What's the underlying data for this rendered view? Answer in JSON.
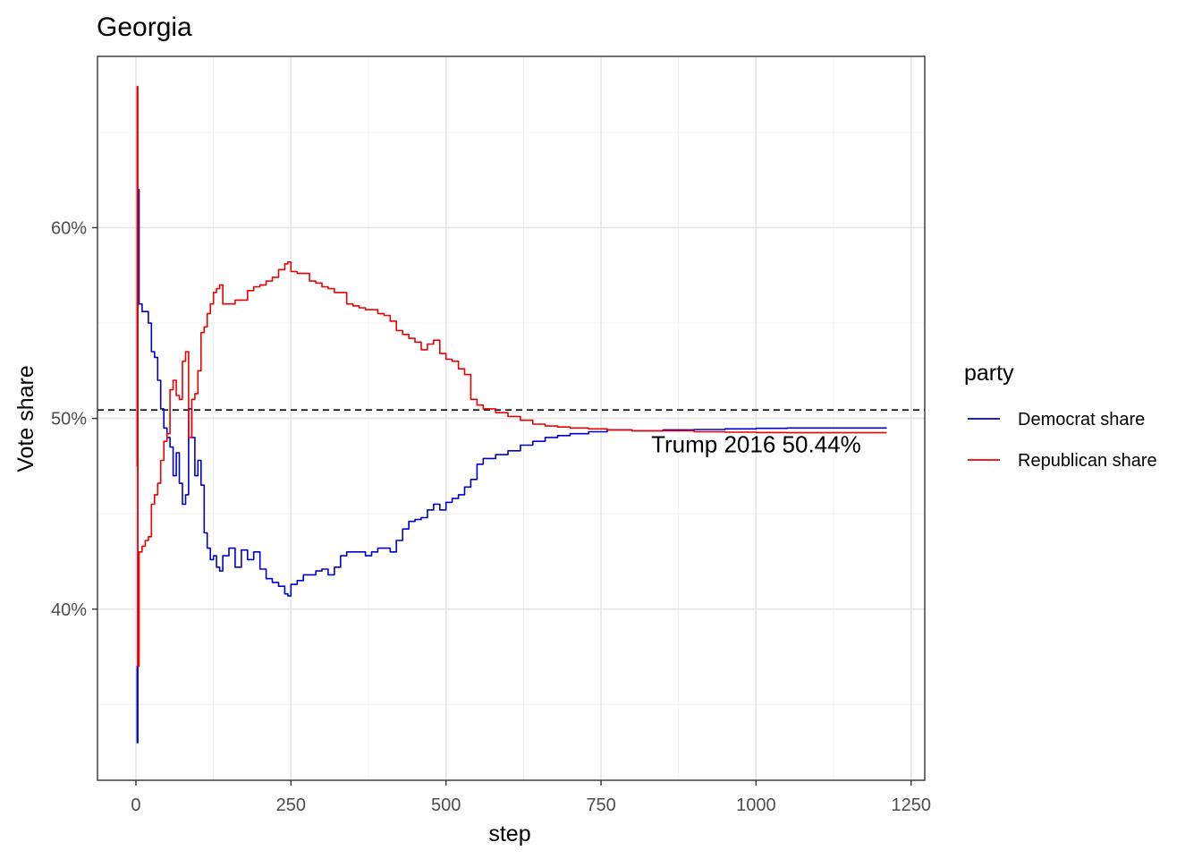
{
  "chart_data": {
    "type": "line",
    "title": "Georgia",
    "xlabel": "step",
    "ylabel": "Vote share",
    "xlim": [
      -62,
      1272
    ],
    "ylim": [
      0.3103,
      0.6898
    ],
    "x_ticks": [
      0,
      250,
      500,
      750,
      1000,
      1250
    ],
    "x_tick_labels": [
      "0",
      "250",
      "500",
      "750",
      "1000",
      "1250"
    ],
    "y_ticks": [
      0.4,
      0.5,
      0.6
    ],
    "y_tick_labels": [
      "40%",
      "50%",
      "60%"
    ],
    "grid": true,
    "legend": {
      "title": "party",
      "position": "right",
      "entries": [
        {
          "label": "Democrat share",
          "color": "#0000cd"
        },
        {
          "label": "Republican share",
          "color": "#ee0000"
        }
      ]
    },
    "reference_line": {
      "y": 0.5044,
      "style": "dashed",
      "color": "#000000"
    },
    "annotation": {
      "text": "Trump 2016 50.44%",
      "x": 1000,
      "y": 0.4865
    },
    "series": [
      {
        "name": "Democrat share",
        "color": "#0000cd",
        "points": [
          [
            1,
            0.37
          ],
          [
            2,
            0.33
          ],
          [
            3,
            0.62
          ],
          [
            5,
            0.56
          ],
          [
            10,
            0.556
          ],
          [
            20,
            0.55
          ],
          [
            25,
            0.535
          ],
          [
            30,
            0.532
          ],
          [
            35,
            0.52
          ],
          [
            40,
            0.505
          ],
          [
            45,
            0.495
          ],
          [
            50,
            0.49
          ],
          [
            55,
            0.485
          ],
          [
            60,
            0.47
          ],
          [
            65,
            0.482
          ],
          [
            70,
            0.466
          ],
          [
            75,
            0.455
          ],
          [
            80,
            0.46
          ],
          [
            85,
            0.505
          ],
          [
            90,
            0.49
          ],
          [
            95,
            0.47
          ],
          [
            100,
            0.478
          ],
          [
            105,
            0.465
          ],
          [
            110,
            0.44
          ],
          [
            115,
            0.432
          ],
          [
            120,
            0.426
          ],
          [
            125,
            0.428
          ],
          [
            130,
            0.422
          ],
          [
            135,
            0.42
          ],
          [
            140,
            0.428
          ],
          [
            150,
            0.432
          ],
          [
            160,
            0.422
          ],
          [
            170,
            0.431
          ],
          [
            180,
            0.426
          ],
          [
            190,
            0.43
          ],
          [
            200,
            0.421
          ],
          [
            210,
            0.416
          ],
          [
            220,
            0.414
          ],
          [
            230,
            0.412
          ],
          [
            240,
            0.408
          ],
          [
            245,
            0.407
          ],
          [
            250,
            0.413
          ],
          [
            260,
            0.415
          ],
          [
            270,
            0.418
          ],
          [
            280,
            0.418
          ],
          [
            290,
            0.42
          ],
          [
            300,
            0.421
          ],
          [
            310,
            0.418
          ],
          [
            320,
            0.422
          ],
          [
            330,
            0.428
          ],
          [
            340,
            0.43
          ],
          [
            350,
            0.43
          ],
          [
            360,
            0.43
          ],
          [
            370,
            0.428
          ],
          [
            380,
            0.43
          ],
          [
            390,
            0.432
          ],
          [
            400,
            0.432
          ],
          [
            410,
            0.43
          ],
          [
            420,
            0.436
          ],
          [
            430,
            0.442
          ],
          [
            440,
            0.446
          ],
          [
            450,
            0.447
          ],
          [
            460,
            0.448
          ],
          [
            470,
            0.452
          ],
          [
            480,
            0.455
          ],
          [
            490,
            0.452
          ],
          [
            500,
            0.456
          ],
          [
            510,
            0.458
          ],
          [
            520,
            0.46
          ],
          [
            530,
            0.464
          ],
          [
            540,
            0.468
          ],
          [
            550,
            0.476
          ],
          [
            560,
            0.479
          ],
          [
            580,
            0.481
          ],
          [
            600,
            0.483
          ],
          [
            620,
            0.486
          ],
          [
            640,
            0.488
          ],
          [
            660,
            0.49
          ],
          [
            680,
            0.491
          ],
          [
            700,
            0.492
          ],
          [
            730,
            0.493
          ],
          [
            760,
            0.494
          ],
          [
            800,
            0.4935
          ],
          [
            850,
            0.494
          ],
          [
            900,
            0.4942
          ],
          [
            950,
            0.4945
          ],
          [
            1000,
            0.4948
          ],
          [
            1050,
            0.495
          ],
          [
            1100,
            0.495
          ],
          [
            1150,
            0.495
          ],
          [
            1210,
            0.4952
          ]
        ]
      },
      {
        "name": "Republican share",
        "color": "#ee0000",
        "points": [
          [
            1,
            0.475
          ],
          [
            2,
            0.674
          ],
          [
            3,
            0.37
          ],
          [
            5,
            0.43
          ],
          [
            10,
            0.433
          ],
          [
            15,
            0.436
          ],
          [
            20,
            0.438
          ],
          [
            25,
            0.455
          ],
          [
            30,
            0.46
          ],
          [
            35,
            0.466
          ],
          [
            40,
            0.478
          ],
          [
            45,
            0.488
          ],
          [
            50,
            0.492
          ],
          [
            55,
            0.515
          ],
          [
            60,
            0.52
          ],
          [
            65,
            0.512
          ],
          [
            70,
            0.51
          ],
          [
            75,
            0.53
          ],
          [
            80,
            0.535
          ],
          [
            85,
            0.49
          ],
          [
            90,
            0.51
          ],
          [
            95,
            0.513
          ],
          [
            100,
            0.525
          ],
          [
            105,
            0.545
          ],
          [
            110,
            0.548
          ],
          [
            115,
            0.555
          ],
          [
            120,
            0.56
          ],
          [
            125,
            0.566
          ],
          [
            130,
            0.568
          ],
          [
            135,
            0.57
          ],
          [
            140,
            0.56
          ],
          [
            150,
            0.56
          ],
          [
            160,
            0.562
          ],
          [
            170,
            0.562
          ],
          [
            180,
            0.567
          ],
          [
            190,
            0.569
          ],
          [
            200,
            0.57
          ],
          [
            210,
            0.572
          ],
          [
            220,
            0.574
          ],
          [
            230,
            0.578
          ],
          [
            240,
            0.581
          ],
          [
            245,
            0.582
          ],
          [
            250,
            0.577
          ],
          [
            260,
            0.576
          ],
          [
            270,
            0.576
          ],
          [
            280,
            0.572
          ],
          [
            290,
            0.571
          ],
          [
            300,
            0.569
          ],
          [
            310,
            0.568
          ],
          [
            320,
            0.566
          ],
          [
            330,
            0.566
          ],
          [
            340,
            0.56
          ],
          [
            350,
            0.559
          ],
          [
            360,
            0.558
          ],
          [
            370,
            0.557
          ],
          [
            380,
            0.557
          ],
          [
            390,
            0.555
          ],
          [
            400,
            0.554
          ],
          [
            410,
            0.551
          ],
          [
            420,
            0.546
          ],
          [
            430,
            0.544
          ],
          [
            440,
            0.542
          ],
          [
            450,
            0.54
          ],
          [
            460,
            0.536
          ],
          [
            470,
            0.539
          ],
          [
            480,
            0.541
          ],
          [
            490,
            0.534
          ],
          [
            500,
            0.531
          ],
          [
            510,
            0.53
          ],
          [
            520,
            0.526
          ],
          [
            530,
            0.523
          ],
          [
            540,
            0.51
          ],
          [
            550,
            0.507
          ],
          [
            560,
            0.505
          ],
          [
            580,
            0.503
          ],
          [
            600,
            0.501
          ],
          [
            620,
            0.499
          ],
          [
            640,
            0.497
          ],
          [
            660,
            0.496
          ],
          [
            680,
            0.4955
          ],
          [
            700,
            0.495
          ],
          [
            730,
            0.4945
          ],
          [
            760,
            0.494
          ],
          [
            800,
            0.4935
          ],
          [
            850,
            0.4935
          ],
          [
            900,
            0.493
          ],
          [
            950,
            0.4928
          ],
          [
            1000,
            0.4926
          ],
          [
            1050,
            0.4925
          ],
          [
            1100,
            0.4925
          ],
          [
            1150,
            0.4925
          ],
          [
            1210,
            0.4924
          ]
        ]
      }
    ]
  }
}
